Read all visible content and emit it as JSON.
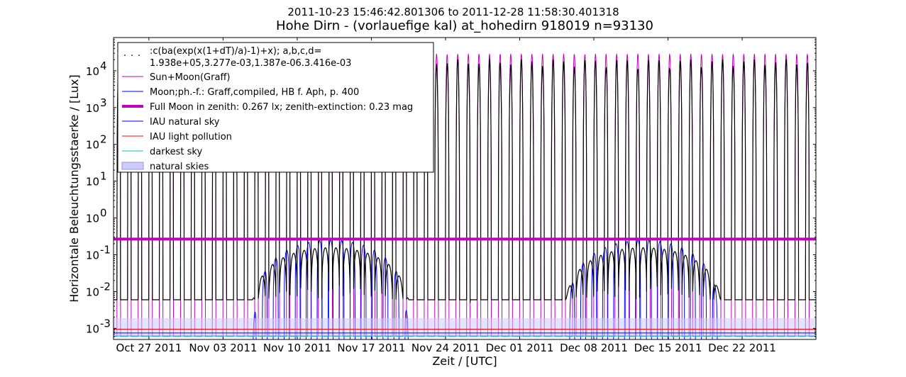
{
  "chart_data": {
    "type": "line",
    "title_line1": "2011-10-23 15:46:42.801306 to 2011-12-28 11:58:30.401318",
    "title_line2": "Hohe Dirn - (vorlauefige kal) at_hohedirn 918019 n=93130",
    "xlabel": "Zeit / [UTC]",
    "ylabel": "Horizontale Beleuchtungsstaerke / [Lux]",
    "y_scale": "log",
    "ylim": [
      0.0005,
      80000
    ],
    "x_range_days": [
      0,
      66.3
    ],
    "x_ticks": [
      {
        "label": "Oct 27 2011",
        "day": 3.34
      },
      {
        "label": "Nov 03 2011",
        "day": 10.34
      },
      {
        "label": "Nov 10 2011",
        "day": 17.34
      },
      {
        "label": "Nov 17 2011",
        "day": 24.34
      },
      {
        "label": "Nov 24 2011",
        "day": 31.34
      },
      {
        "label": "Dec 01 2011",
        "day": 38.34
      },
      {
        "label": "Dec 08 2011",
        "day": 45.34
      },
      {
        "label": "Dec 15 2011",
        "day": 52.34
      },
      {
        "label": "Dec 22 2011",
        "day": 59.34
      }
    ],
    "y_ticks": [
      {
        "exp": "4",
        "value": 10000
      },
      {
        "exp": "3",
        "value": 1000
      },
      {
        "exp": "2",
        "value": 100
      },
      {
        "exp": "1",
        "value": 10
      },
      {
        "exp": "0",
        "value": 1
      },
      {
        "exp": "-1",
        "value": 0.1
      },
      {
        "exp": "-2",
        "value": 0.01
      },
      {
        "exp": "-3",
        "value": 0.001
      }
    ],
    "reference_lines": {
      "full_moon_zenith": 0.267,
      "iau_light_pollution": 0.00095,
      "iau_natural_sky": 0.00075,
      "darkest_sky": 0.00062,
      "natural_skies_band": [
        0.00058,
        0.0019
      ]
    },
    "series_levels": {
      "sun_moon_day_peak_lux": 28000,
      "sun_moon_night_min_lux": 0.0006,
      "measured_night_baseline_lux": 0.006,
      "measured_day_peak_lux": 20000,
      "moon_max_lux": 0.25
    },
    "legend": {
      "placement": "top-left",
      "entries": [
        {
          "label": ":c(ba(exp(x(1+dT)/a)-1)+x); a,b,c,d=",
          "label2": "1.938e+05,3.277e-03,1.387e-06.3.416e-03",
          "style": "dots",
          "color": "#000000"
        },
        {
          "label": "Sun+Moon(Graff)",
          "style": "line",
          "color": "#bf00bf"
        },
        {
          "label": "Moon;ph.-f.: Graff,compiled, HB f. Aph, p. 400",
          "style": "line",
          "color": "#0000ff"
        },
        {
          "label": "Full Moon in zenith: 0.267 lx; zenith-extinction: 0.23 mag",
          "style": "thick",
          "color": "#bf00bf"
        },
        {
          "label": "IAU natural sky",
          "style": "line",
          "color": "#0000ff"
        },
        {
          "label": "IAU light pollution",
          "style": "line",
          "color": "#ff0000"
        },
        {
          "label": "darkest sky",
          "style": "line",
          "color": "#00bfbf"
        },
        {
          "label": "natural skies",
          "style": "patch",
          "color": "#ccccff"
        }
      ]
    }
  }
}
